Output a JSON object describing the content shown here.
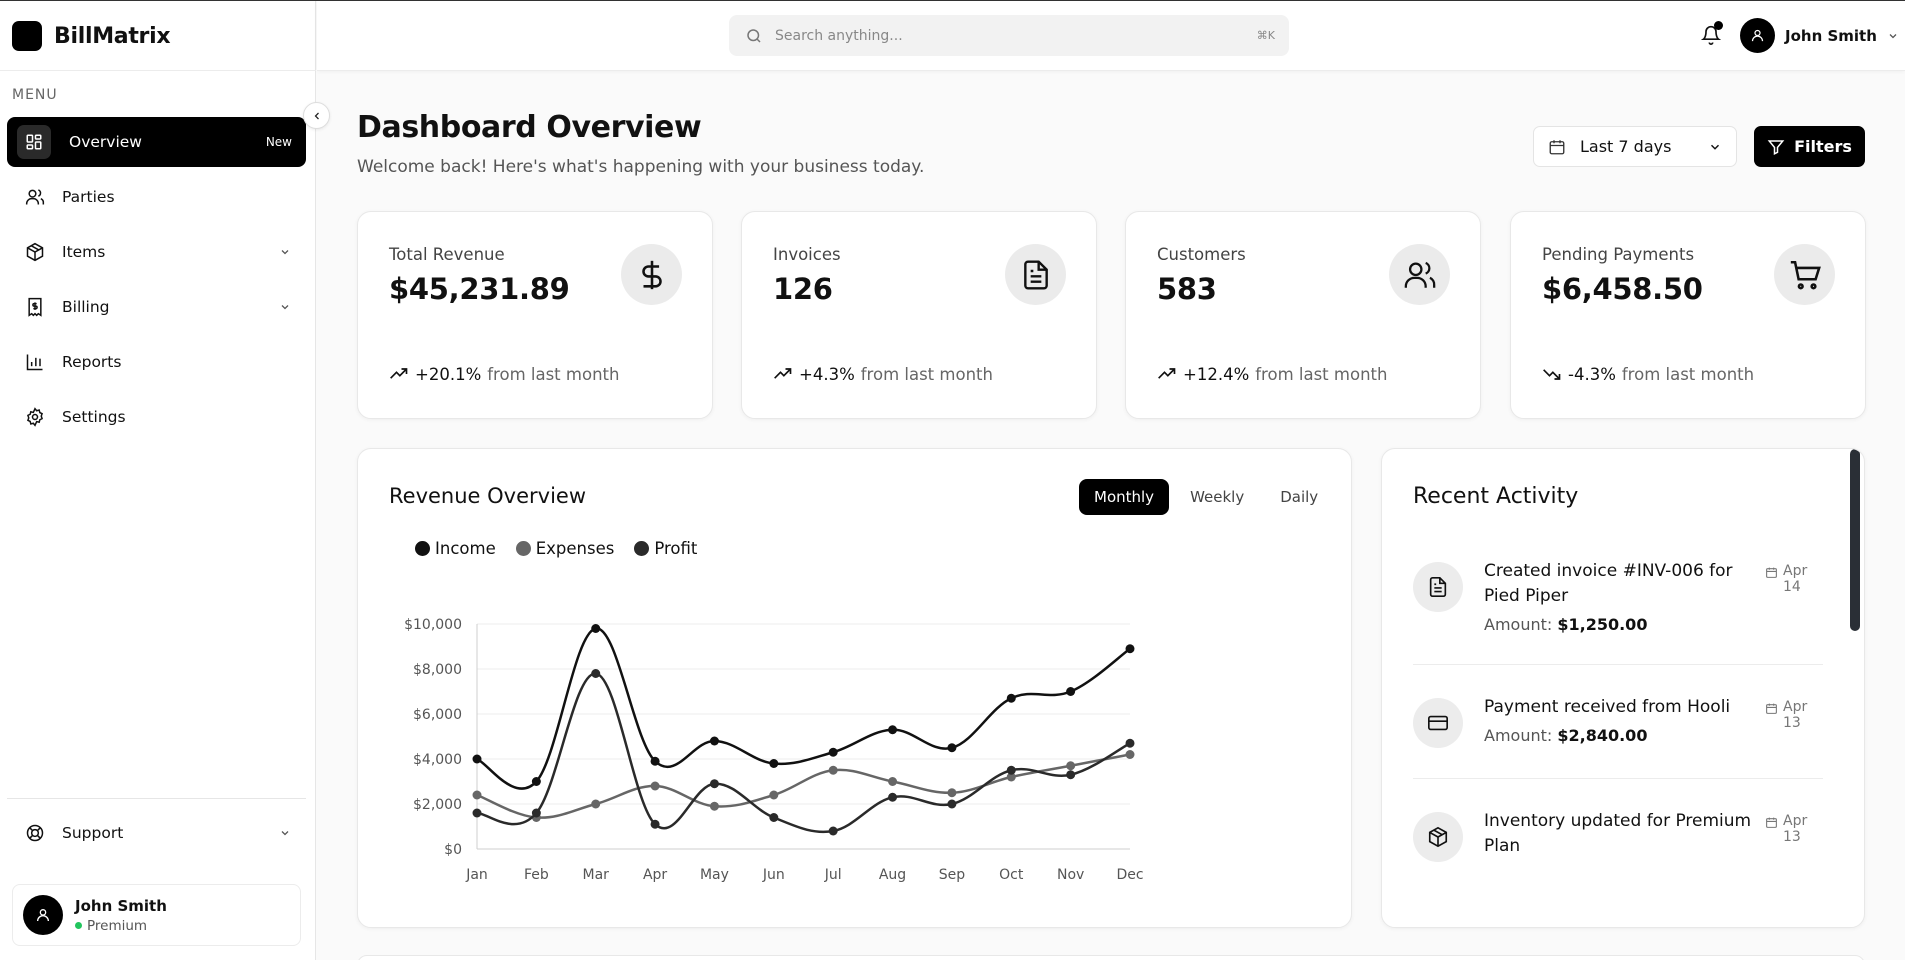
{
  "app": {
    "name": "BillMatrix"
  },
  "sidebar": {
    "menu_label": "MENU",
    "items": [
      {
        "label": "Overview",
        "icon": "grid-icon",
        "badge": "New",
        "active": true
      },
      {
        "label": "Parties",
        "icon": "users-icon"
      },
      {
        "label": "Items",
        "icon": "package-icon",
        "expandable": true
      },
      {
        "label": "Billing",
        "icon": "receipt-icon",
        "expandable": true
      },
      {
        "label": "Reports",
        "icon": "bar-chart-icon"
      },
      {
        "label": "Settings",
        "icon": "gear-icon"
      }
    ],
    "support_label": "Support",
    "user": {
      "name": "John Smith",
      "plan": "Premium"
    }
  },
  "header": {
    "search_placeholder": "Search anything...",
    "search_shortcut": "⌘K",
    "user_name": "John Smith"
  },
  "page": {
    "title": "Dashboard Overview",
    "subtitle": "Welcome back! Here's what's happening with your business today.",
    "range_label": "Last 7 days",
    "filters_label": "Filters"
  },
  "stats": [
    {
      "label": "Total Revenue",
      "value": "$45,231.89",
      "change": "+20.1%",
      "context": "from last month",
      "trend": "up",
      "icon": "dollar-icon"
    },
    {
      "label": "Invoices",
      "value": "126",
      "change": "+4.3%",
      "context": "from last month",
      "trend": "up",
      "icon": "document-icon"
    },
    {
      "label": "Customers",
      "value": "583",
      "change": "+12.4%",
      "context": "from last month",
      "trend": "up",
      "icon": "users-icon"
    },
    {
      "label": "Pending Payments",
      "value": "$6,458.50",
      "change": "-4.3%",
      "context": "from last month",
      "trend": "down",
      "icon": "cart-icon"
    }
  ],
  "revenue": {
    "title": "Revenue Overview",
    "tabs": [
      "Monthly",
      "Weekly",
      "Daily"
    ],
    "active_tab": "Monthly"
  },
  "chart_data": {
    "type": "line",
    "title": "Revenue Overview",
    "categories": [
      "Jan",
      "Feb",
      "Mar",
      "Apr",
      "May",
      "Jun",
      "Jul",
      "Aug",
      "Sep",
      "Oct",
      "Nov",
      "Dec"
    ],
    "series": [
      {
        "name": "Income",
        "color": "#111111",
        "values": [
          4000,
          3000,
          9800,
          3900,
          4800,
          3800,
          4300,
          5300,
          4500,
          6700,
          7000,
          8900
        ]
      },
      {
        "name": "Expenses",
        "color": "#666666",
        "values": [
          2400,
          1400,
          2000,
          2800,
          1900,
          2400,
          3500,
          3000,
          2500,
          3200,
          3700,
          4200
        ]
      },
      {
        "name": "Profit",
        "color": "#2a2a2a",
        "values": [
          1600,
          1600,
          7800,
          1100,
          2900,
          1400,
          800,
          2300,
          2000,
          3500,
          3300,
          4700
        ]
      }
    ],
    "yticks": [
      "$0",
      "$2,000",
      "$4,000",
      "$6,000",
      "$8,000",
      "$10,000"
    ],
    "ylim": [
      0,
      10000
    ],
    "grid": true,
    "legend": "top-left"
  },
  "activity": {
    "title": "Recent Activity",
    "items": [
      {
        "icon": "document-icon",
        "text": "Created invoice #INV-006 for Pied Piper",
        "amount_label": "Amount:",
        "amount": "$1,250.00",
        "date": "Apr 14"
      },
      {
        "icon": "credit-card-icon",
        "text": "Payment received from Hooli",
        "amount_label": "Amount:",
        "amount": "$2,840.00",
        "date": "Apr 13"
      },
      {
        "icon": "package-icon",
        "text": "Inventory updated for Premium Plan",
        "date": "Apr 13"
      }
    ]
  }
}
